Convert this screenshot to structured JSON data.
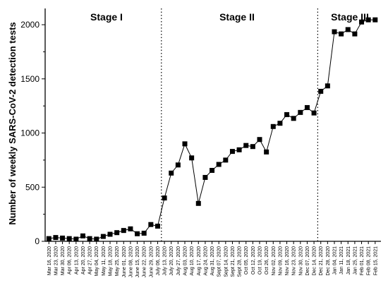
{
  "chart_data": {
    "type": "line",
    "title": "",
    "xlabel": "",
    "ylabel": "Number of weekly SARS-CoV-2 detection tests",
    "ylim": [
      0,
      2150
    ],
    "yticks": [
      0,
      500,
      1000,
      1500,
      2000
    ],
    "grid": false,
    "marker": "square",
    "categories": [
      "Mar 16, 2020",
      "Mar 23, 2020",
      "Mar 30, 2020",
      "Apr 06, 2020",
      "Apr 13, 2020",
      "Apr 20, 2020",
      "Apr 27, 2020",
      "May 04, 2020",
      "May 11, 2020",
      "May 18, 2020",
      "May 25, 2020",
      "June 01, 2020",
      "June 08, 2020",
      "June 15, 2020",
      "June 22, 2020",
      "June 29, 2020",
      "July 06, 2020",
      "July 13, 2020",
      "July 20, 2020",
      "July 27, 2020",
      "Aug 03, 2020",
      "Aug 10, 2020",
      "Aug 17, 2020",
      "Aug 24, 2020",
      "Aug 31, 2020",
      "Sept 07, 2020",
      "Sept 14, 2020",
      "Sept 21, 2020",
      "Sept 28, 2020",
      "Oct 05, 2020",
      "Oct 12, 2020",
      "Oct 19, 2020",
      "Oct 26, 2020",
      "Nov 02, 2020",
      "Nov 09, 2020",
      "Nov 16, 2020",
      "Nov 23, 2020",
      "Nov 30, 2020",
      "Dec 07, 2020",
      "Dec 14, 2020",
      "Dec 21, 2020",
      "Dec 28, 2020",
      "Jan 04, 2021",
      "Jan 11, 2021",
      "Jan 18, 2021",
      "Jan 25, 2021",
      "Feb 01, 2021",
      "Feb 08, 2021",
      "Feb 15, 2021"
    ],
    "values": [
      25,
      35,
      30,
      25,
      20,
      50,
      25,
      20,
      45,
      65,
      80,
      100,
      115,
      70,
      75,
      155,
      140,
      400,
      630,
      705,
      900,
      770,
      350,
      590,
      655,
      710,
      750,
      830,
      845,
      885,
      875,
      940,
      825,
      1060,
      1090,
      1170,
      1135,
      1190,
      1235,
      1185,
      1385,
      1435,
      1935,
      1915,
      1955,
      1915,
      2025,
      2045,
      2045
    ],
    "stage_dividers_after_category": [
      "July 06, 2020",
      "Dec 14, 2020"
    ],
    "stages": [
      {
        "label": "Stage I"
      },
      {
        "label": "Stage II"
      },
      {
        "label": "Stage III"
      }
    ]
  }
}
